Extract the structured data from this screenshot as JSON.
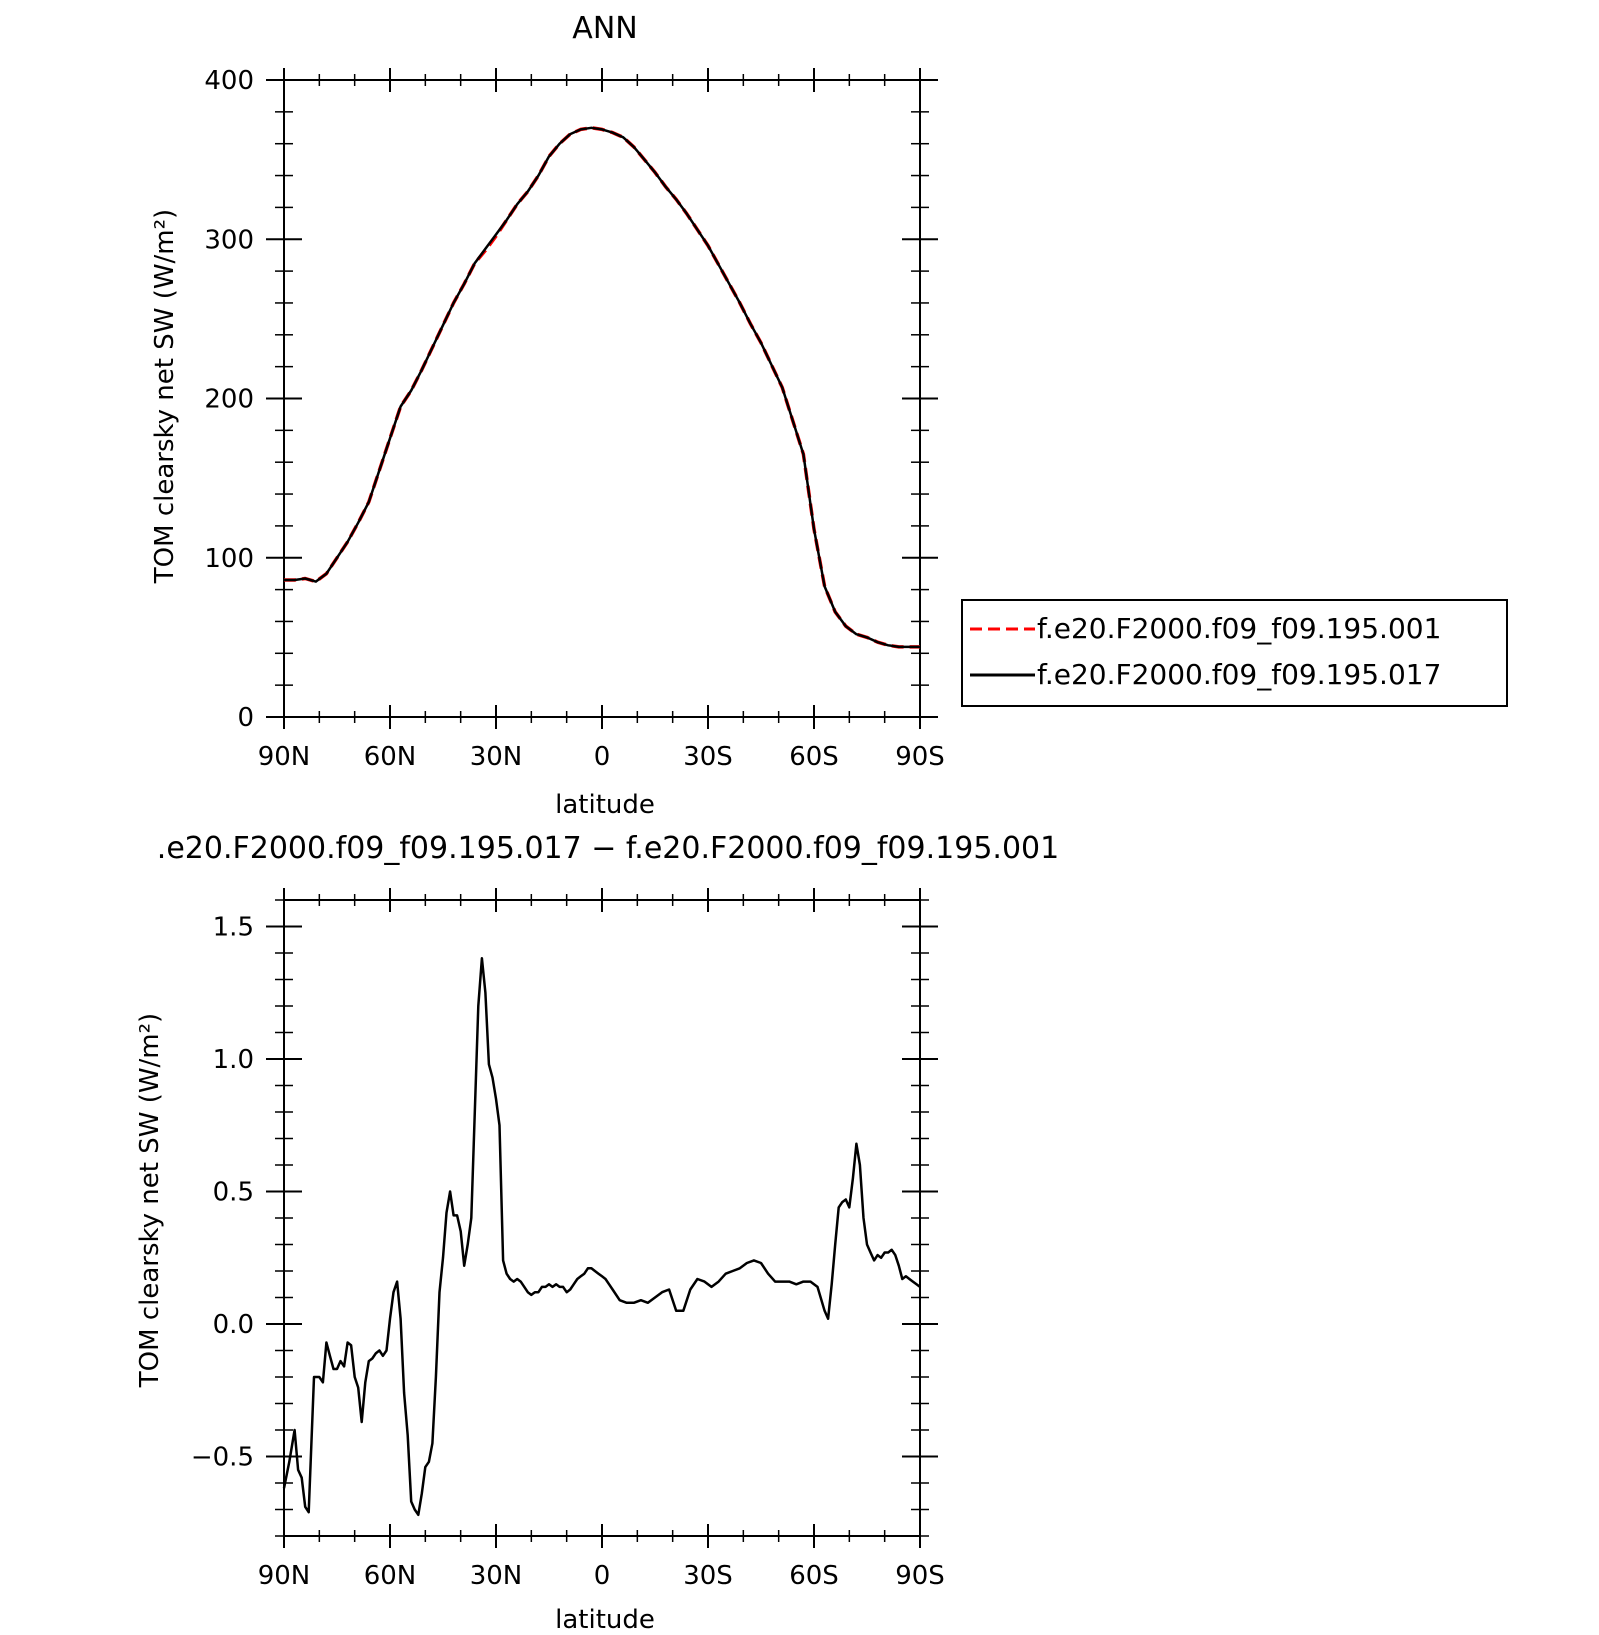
{
  "chart_data": [
    {
      "type": "line",
      "title": "ANN",
      "xlabel": "latitude",
      "ylabel": "TOM clearsky net SW (W/m²)",
      "xlim": [
        90,
        -90
      ],
      "ylim": [
        0,
        400
      ],
      "xticks": [
        90,
        60,
        30,
        0,
        -30,
        -60,
        -90
      ],
      "xticklabels": [
        "90N",
        "60N",
        "30N",
        "0",
        "30S",
        "60S",
        "90S"
      ],
      "yticks": [
        0,
        100,
        200,
        300,
        400
      ],
      "yticklabels": [
        "0",
        "100",
        "200",
        "300",
        "400"
      ],
      "legend_position": "right",
      "series": [
        {
          "name": "f.e20.F2000.f09_f09.195.001",
          "color": "#ff0000",
          "dash": "dashed",
          "x": [
            90,
            87,
            84,
            81,
            78,
            75,
            72,
            69,
            66,
            63,
            60,
            57,
            54,
            51,
            48,
            45,
            42,
            39,
            36,
            33,
            30,
            27,
            24,
            21,
            18,
            15,
            12,
            9,
            6,
            3,
            0,
            -3,
            -6,
            -9,
            -12,
            -15,
            -18,
            -21,
            -24,
            -27,
            -30,
            -33,
            -36,
            -39,
            -42,
            -45,
            -48,
            -51,
            -54,
            -57,
            -60,
            -63,
            -66,
            -69,
            -72,
            -75,
            -78,
            -81,
            -84,
            -87,
            -90
          ],
          "y": [
            86,
            86,
            87,
            85,
            90,
            100,
            110,
            122,
            135,
            155,
            175,
            195,
            205,
            218,
            232,
            246,
            260,
            272,
            285,
            293,
            302,
            312,
            322,
            330,
            340,
            352,
            360,
            366,
            369,
            370,
            369,
            367,
            364,
            358,
            350,
            342,
            333,
            325,
            316,
            306,
            296,
            284,
            272,
            260,
            247,
            235,
            221,
            207,
            186,
            165,
            118,
            82,
            66,
            57,
            52,
            50,
            47,
            45,
            44,
            44,
            44
          ]
        },
        {
          "name": "f.e20.F2000.f09_f09.195.017",
          "color": "#000000",
          "dash": "solid",
          "x": [
            90,
            87,
            84,
            81,
            78,
            75,
            72,
            69,
            66,
            63,
            60,
            57,
            54,
            51,
            48,
            45,
            42,
            39,
            36,
            33,
            30,
            27,
            24,
            21,
            18,
            15,
            12,
            9,
            6,
            3,
            0,
            -3,
            -6,
            -9,
            -12,
            -15,
            -18,
            -21,
            -24,
            -27,
            -30,
            -33,
            -36,
            -39,
            -42,
            -45,
            -48,
            -51,
            -54,
            -57,
            -60,
            -63,
            -66,
            -69,
            -72,
            -75,
            -78,
            -81,
            -84,
            -87,
            -90
          ],
          "y": [
            86,
            86,
            87,
            85,
            90,
            100,
            110,
            122,
            135,
            155,
            175,
            195,
            205,
            218,
            232,
            246,
            260,
            272,
            285,
            294,
            303,
            312,
            322,
            330,
            340,
            352,
            360,
            366,
            369,
            370,
            369,
            367,
            364,
            358,
            350,
            342,
            333,
            325,
            316,
            306,
            296,
            284,
            272,
            260,
            247,
            235,
            221,
            207,
            186,
            165,
            118,
            82,
            66,
            57,
            52,
            50,
            47,
            45,
            44,
            44,
            44
          ]
        }
      ]
    },
    {
      "type": "line",
      "title": ".e20.F2000.f09_f09.195.017 − f.e20.F2000.f09_f09.195.001",
      "xlabel": "latitude",
      "ylabel": "TOM clearsky net SW (W/m²)",
      "xlim": [
        90,
        -90
      ],
      "ylim": [
        -0.8,
        1.6
      ],
      "xticks": [
        90,
        60,
        30,
        0,
        -30,
        -60,
        -90
      ],
      "xticklabels": [
        "90N",
        "60N",
        "30N",
        "0",
        "30S",
        "60S",
        "90S"
      ],
      "yticks": [
        -0.5,
        0.0,
        0.5,
        1.0,
        1.5
      ],
      "yticklabels": [
        "−0.5",
        "0.0",
        "0.5",
        "1.0",
        "1.5"
      ],
      "series": [
        {
          "color": "#000000",
          "dash": "solid",
          "x": [
            90,
            88.5,
            87,
            86,
            85,
            84,
            83,
            81.5,
            80,
            79,
            78,
            77,
            76,
            75,
            74,
            73,
            72,
            71,
            70,
            69,
            68,
            67,
            66,
            65,
            64,
            63,
            62,
            61,
            60,
            59,
            58,
            57,
            56,
            55,
            54,
            53,
            52,
            51,
            50,
            49,
            48,
            47,
            46,
            45,
            44,
            43,
            42,
            41,
            40,
            39,
            38,
            37,
            36,
            35,
            34,
            33,
            32,
            31,
            30,
            29,
            28,
            27,
            26,
            25,
            24,
            23,
            22,
            21,
            20,
            19,
            18,
            17,
            16,
            15,
            14,
            13,
            12,
            11,
            10,
            9,
            8,
            7,
            6,
            5,
            4,
            3,
            2,
            1,
            0,
            -1,
            -2,
            -3,
            -5,
            -7,
            -9,
            -11,
            -13,
            -15,
            -17,
            -19,
            -21,
            -23,
            -25,
            -27,
            -29,
            -31,
            -33,
            -35,
            -37,
            -39,
            -41,
            -43,
            -45,
            -47,
            -49,
            -51,
            -53,
            -55,
            -57,
            -59,
            -61,
            -63,
            -64,
            -65,
            -66,
            -67,
            -68,
            -69,
            -70,
            -71,
            -72,
            -73,
            -74,
            -75,
            -76,
            -77,
            -78,
            -79,
            -80,
            -81,
            -82,
            -83,
            -84,
            -85,
            -86,
            -87,
            -88,
            -89,
            -90
          ],
          "y": [
            -0.62,
            -0.52,
            -0.4,
            -0.55,
            -0.58,
            -0.69,
            -0.71,
            -0.2,
            -0.2,
            -0.22,
            -0.07,
            -0.12,
            -0.17,
            -0.17,
            -0.14,
            -0.16,
            -0.07,
            -0.08,
            -0.2,
            -0.24,
            -0.37,
            -0.22,
            -0.14,
            -0.13,
            -0.11,
            -0.1,
            -0.12,
            -0.1,
            0.02,
            0.12,
            0.16,
            0.02,
            -0.26,
            -0.42,
            -0.67,
            -0.7,
            -0.72,
            -0.64,
            -0.54,
            -0.52,
            -0.45,
            -0.2,
            0.12,
            0.25,
            0.42,
            0.5,
            0.41,
            0.41,
            0.35,
            0.22,
            0.3,
            0.4,
            0.8,
            1.2,
            1.38,
            1.25,
            0.98,
            0.93,
            0.85,
            0.75,
            0.24,
            0.19,
            0.17,
            0.16,
            0.17,
            0.16,
            0.14,
            0.12,
            0.11,
            0.12,
            0.12,
            0.14,
            0.14,
            0.15,
            0.14,
            0.15,
            0.14,
            0.14,
            0.12,
            0.13,
            0.15,
            0.17,
            0.18,
            0.19,
            0.21,
            0.21,
            0.2,
            0.19,
            0.18,
            0.17,
            0.15,
            0.13,
            0.09,
            0.08,
            0.08,
            0.09,
            0.08,
            0.1,
            0.12,
            0.13,
            0.05,
            0.05,
            0.13,
            0.17,
            0.16,
            0.14,
            0.16,
            0.19,
            0.2,
            0.21,
            0.23,
            0.24,
            0.23,
            0.19,
            0.16,
            0.16,
            0.16,
            0.15,
            0.16,
            0.16,
            0.14,
            0.05,
            0.02,
            0.15,
            0.3,
            0.44,
            0.46,
            0.47,
            0.44,
            0.55,
            0.68,
            0.6,
            0.4,
            0.3,
            0.27,
            0.24,
            0.26,
            0.25,
            0.27,
            0.27,
            0.28,
            0.26,
            0.22,
            0.17,
            0.18,
            0.17,
            0.16,
            0.15,
            0.14
          ]
        }
      ]
    }
  ]
}
